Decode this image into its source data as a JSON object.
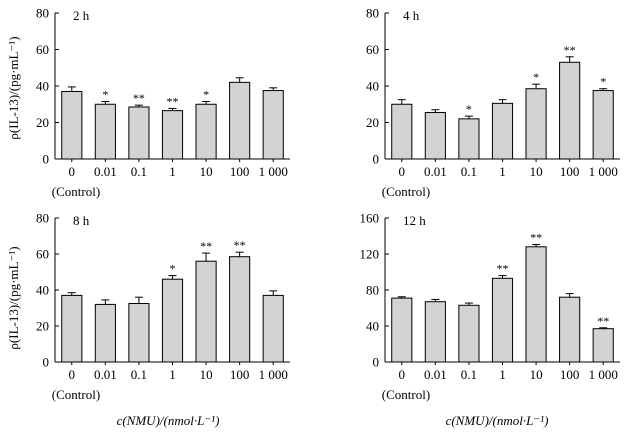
{
  "figure": {
    "ylabel": "ρ(IL-13)/(pg·mL⁻¹)",
    "xlabel": "c(NMU)/(nmol·L⁻¹)"
  },
  "chart_data": [
    {
      "type": "bar",
      "title": "2 h",
      "categories": [
        "0",
        "0.01",
        "0.1",
        "1",
        "10",
        "100",
        "1 000"
      ],
      "control_label": "(Control)",
      "values": [
        37,
        30,
        28.5,
        26.5,
        30,
        42,
        37.5
      ],
      "errors": [
        2.5,
        1.5,
        1.0,
        1.2,
        1.5,
        2.5,
        1.5
      ],
      "significance": [
        "",
        "*",
        "**",
        "**",
        "*",
        "",
        ""
      ],
      "ylim": [
        0,
        80
      ],
      "yticks": [
        0,
        20,
        40,
        60,
        80
      ],
      "bar_color": "#d3d3d3"
    },
    {
      "type": "bar",
      "title": "4 h",
      "categories": [
        "0",
        "0.01",
        "0.1",
        "1",
        "10",
        "100",
        "1 000"
      ],
      "control_label": "(Control)",
      "values": [
        30,
        25.5,
        22,
        30.5,
        38.5,
        53,
        37.5
      ],
      "errors": [
        2.5,
        1.5,
        1.5,
        2.0,
        2.5,
        3.0,
        1.0
      ],
      "significance": [
        "",
        "",
        "*",
        "",
        "*",
        "**",
        "*"
      ],
      "ylim": [
        0,
        80
      ],
      "yticks": [
        0,
        20,
        40,
        60,
        80
      ],
      "bar_color": "#d3d3d3"
    },
    {
      "type": "bar",
      "title": "8 h",
      "categories": [
        "0",
        "0.01",
        "0.1",
        "1",
        "10",
        "100",
        "1 000"
      ],
      "control_label": "(Control)",
      "values": [
        37,
        32,
        32.5,
        46,
        56,
        58.5,
        37
      ],
      "errors": [
        1.5,
        2.5,
        3.5,
        2.0,
        4.5,
        2.5,
        2.5
      ],
      "significance": [
        "",
        "",
        "",
        "*",
        "**",
        "**",
        ""
      ],
      "ylim": [
        0,
        80
      ],
      "yticks": [
        0,
        20,
        40,
        60,
        80
      ],
      "bar_color": "#d3d3d3"
    },
    {
      "type": "bar",
      "title": "12 h",
      "categories": [
        "0",
        "0.01",
        "0.1",
        "1",
        "10",
        "100",
        "1 000"
      ],
      "control_label": "(Control)",
      "values": [
        71,
        67,
        63,
        93,
        128,
        72,
        37
      ],
      "errors": [
        1.5,
        2.5,
        2.5,
        3.0,
        2.5,
        4.0,
        1.0
      ],
      "significance": [
        "",
        "",
        "",
        "**",
        "**",
        "",
        "**"
      ],
      "ylim": [
        0,
        160
      ],
      "yticks": [
        0,
        40,
        80,
        120,
        160
      ],
      "bar_color": "#d3d3d3"
    }
  ]
}
